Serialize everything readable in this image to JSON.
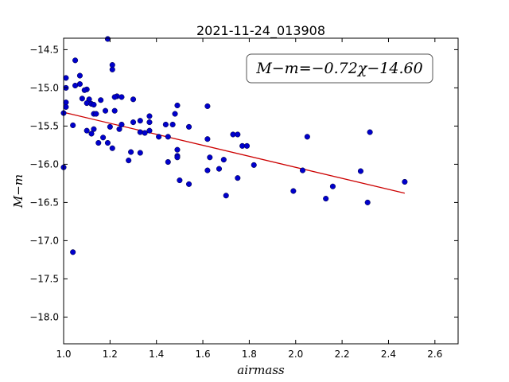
{
  "chart_data": {
    "type": "scatter",
    "title": "2021-11-24_013908",
    "xlabel": "airmass",
    "ylabel": "M−m",
    "xlim": [
      1.0,
      2.7
    ],
    "ylim": [
      -18.35,
      -14.35
    ],
    "y_inverted": true,
    "grid": false,
    "x_ticks": [
      1.0,
      1.2,
      1.4,
      1.6,
      1.8,
      2.0,
      2.2,
      2.4,
      2.6
    ],
    "x_tick_labels": [
      "1.0",
      "1.2",
      "1.4",
      "1.6",
      "1.8",
      "2.0",
      "2.2",
      "2.4",
      "2.6"
    ],
    "y_ticks": [
      -14.5,
      -15.0,
      -15.5,
      -16.0,
      -16.5,
      -17.0,
      -17.5,
      -18.0
    ],
    "y_tick_labels": [
      "−14.5",
      "−15.0",
      "−15.5",
      "−16.0",
      "−16.5",
      "−17.0",
      "−17.5",
      "−18.0"
    ],
    "annotation": "M−m=−0.72χ−14.60",
    "marker_color": "#0000cc",
    "fit_color": "#cc0000",
    "fit_line": {
      "slope": -0.72,
      "intercept": -14.6,
      "x_range": [
        1.0,
        2.47
      ]
    },
    "points": [
      [
        1.19,
        -14.36
      ],
      [
        1.05,
        -14.64
      ],
      [
        1.21,
        -14.7
      ],
      [
        1.21,
        -14.76
      ],
      [
        1.07,
        -14.84
      ],
      [
        1.01,
        -14.87
      ],
      [
        1.07,
        -14.95
      ],
      [
        1.05,
        -14.97
      ],
      [
        1.01,
        -15.0
      ],
      [
        1.1,
        -15.02
      ],
      [
        1.09,
        -15.03
      ],
      [
        1.23,
        -15.11
      ],
      [
        1.22,
        -15.12
      ],
      [
        1.25,
        -15.12
      ],
      [
        1.08,
        -15.14
      ],
      [
        1.11,
        -15.15
      ],
      [
        1.3,
        -15.15
      ],
      [
        1.16,
        -15.16
      ],
      [
        1.01,
        -15.19
      ],
      [
        1.1,
        -15.2
      ],
      [
        1.12,
        -15.21
      ],
      [
        1.13,
        -15.22
      ],
      [
        1.49,
        -15.23
      ],
      [
        1.62,
        -15.24
      ],
      [
        1.01,
        -15.25
      ],
      [
        1.18,
        -15.3
      ],
      [
        1.22,
        -15.3
      ],
      [
        1.0,
        -15.33
      ],
      [
        1.13,
        -15.34
      ],
      [
        1.14,
        -15.34
      ],
      [
        1.48,
        -15.34
      ],
      [
        1.37,
        -15.37
      ],
      [
        1.33,
        -15.43
      ],
      [
        1.3,
        -15.45
      ],
      [
        1.37,
        -15.45
      ],
      [
        1.25,
        -15.48
      ],
      [
        1.44,
        -15.48
      ],
      [
        1.47,
        -15.48
      ],
      [
        1.04,
        -15.49
      ],
      [
        1.2,
        -15.51
      ],
      [
        1.54,
        -15.51
      ],
      [
        1.13,
        -15.54
      ],
      [
        1.24,
        -15.54
      ],
      [
        1.1,
        -15.56
      ],
      [
        1.37,
        -15.56
      ],
      [
        1.33,
        -15.58
      ],
      [
        1.35,
        -15.59
      ],
      [
        1.12,
        -15.6
      ],
      [
        1.73,
        -15.61
      ],
      [
        1.75,
        -15.61
      ],
      [
        1.41,
        -15.64
      ],
      [
        1.45,
        -15.64
      ],
      [
        2.05,
        -15.64
      ],
      [
        1.17,
        -15.65
      ],
      [
        2.32,
        -15.58
      ],
      [
        1.62,
        -15.67
      ],
      [
        1.15,
        -15.72
      ],
      [
        1.19,
        -15.72
      ],
      [
        1.77,
        -15.76
      ],
      [
        1.79,
        -15.76
      ],
      [
        1.21,
        -15.79
      ],
      [
        1.49,
        -15.81
      ],
      [
        1.29,
        -15.84
      ],
      [
        1.33,
        -15.85
      ],
      [
        1.49,
        -15.89
      ],
      [
        1.49,
        -15.91
      ],
      [
        1.63,
        -15.91
      ],
      [
        1.69,
        -15.94
      ],
      [
        1.28,
        -15.95
      ],
      [
        1.45,
        -15.97
      ],
      [
        1.82,
        -16.01
      ],
      [
        1.0,
        -16.04
      ],
      [
        1.67,
        -16.06
      ],
      [
        1.62,
        -16.08
      ],
      [
        2.03,
        -16.08
      ],
      [
        2.28,
        -16.09
      ],
      [
        1.75,
        -16.18
      ],
      [
        1.5,
        -16.21
      ],
      [
        2.47,
        -16.23
      ],
      [
        1.54,
        -16.26
      ],
      [
        2.16,
        -16.29
      ],
      [
        1.99,
        -16.35
      ],
      [
        1.7,
        -16.41
      ],
      [
        2.13,
        -16.45
      ],
      [
        2.31,
        -16.5
      ],
      [
        1.04,
        -17.15
      ]
    ]
  }
}
